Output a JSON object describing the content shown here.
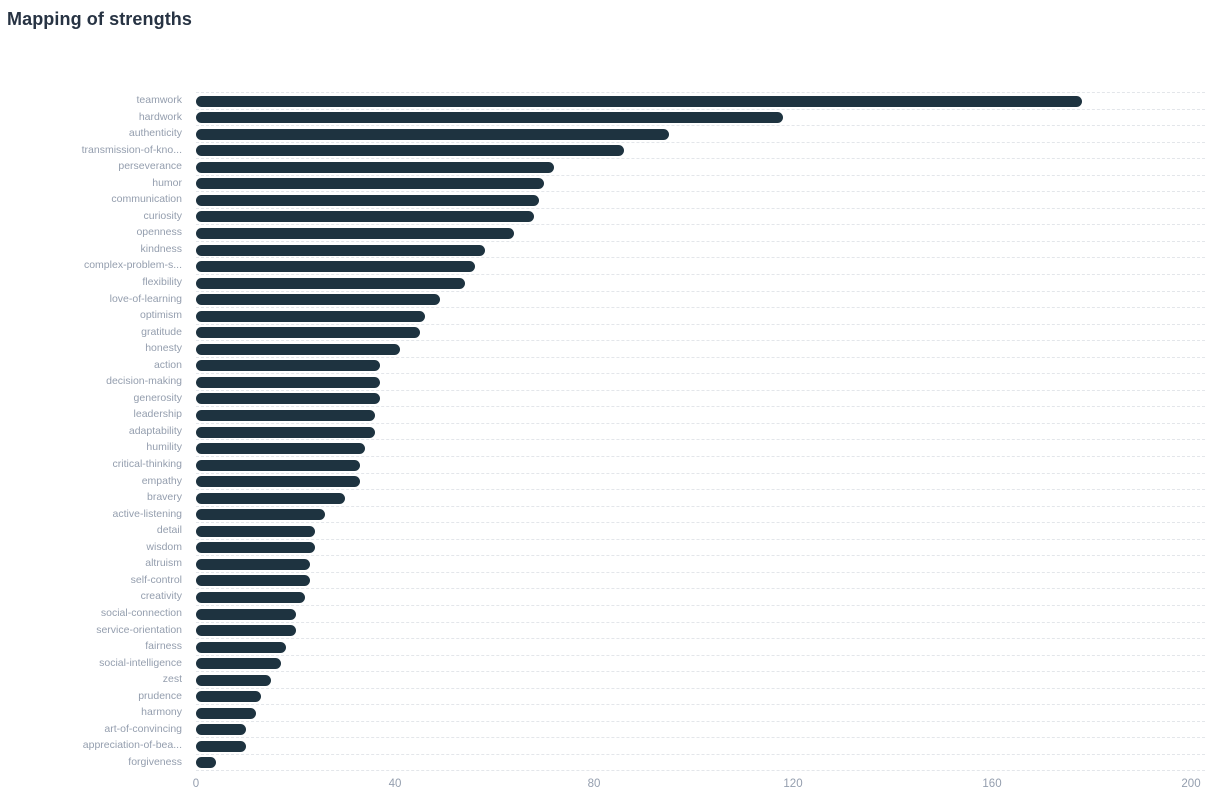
{
  "title": "Mapping of strengths",
  "colors": {
    "bar": "#1e3340",
    "title_text": "#273343",
    "label_text": "#949eae",
    "gridline": "#e3e6ea",
    "background": "#ffffff"
  },
  "chart_data": {
    "type": "bar",
    "orientation": "horizontal",
    "title": "Mapping of strengths",
    "xlabel": "",
    "ylabel": "",
    "xlim": [
      0,
      200
    ],
    "x_ticks": [
      0,
      40,
      80,
      120,
      160,
      200
    ],
    "grid": "dashed horizontal row lines",
    "legend": "none",
    "sort": "descending",
    "categories": [
      "teamwork",
      "hardwork",
      "authenticity",
      "transmission-of-kno...",
      "perseverance",
      "humor",
      "communication",
      "curiosity",
      "openness",
      "kindness",
      "complex-problem-s...",
      "flexibility",
      "love-of-learning",
      "optimism",
      "gratitude",
      "honesty",
      "action",
      "decision-making",
      "generosity",
      "leadership",
      "adaptability",
      "humility",
      "critical-thinking",
      "empathy",
      "bravery",
      "active-listening",
      "detail",
      "wisdom",
      "altruism",
      "self-control",
      "creativity",
      "social-connection",
      "service-orientation",
      "fairness",
      "social-intelligence",
      "zest",
      "prudence",
      "harmony",
      "art-of-convincing",
      "appreciation-of-bea...",
      "forgiveness"
    ],
    "values": [
      178,
      118,
      95,
      86,
      72,
      70,
      69,
      68,
      64,
      58,
      56,
      54,
      49,
      46,
      45,
      41,
      37,
      37,
      37,
      36,
      36,
      34,
      33,
      33,
      30,
      26,
      24,
      24,
      23,
      23,
      22,
      20,
      20,
      18,
      17,
      15,
      13,
      12,
      10,
      10,
      4
    ]
  }
}
